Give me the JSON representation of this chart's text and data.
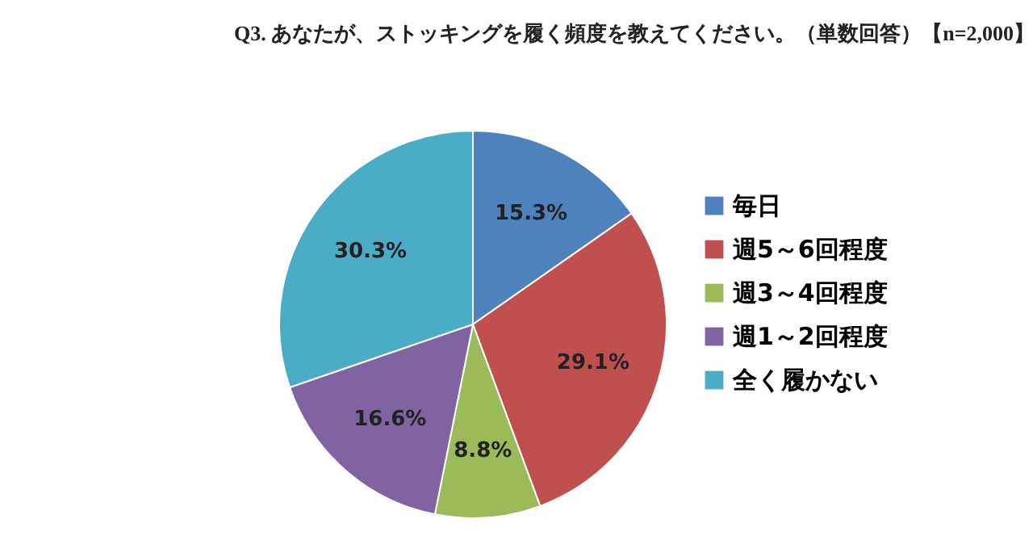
{
  "chart_data": {
    "type": "pie",
    "title": "Q3. あなたが、ストッキングを履く頻度を教えてください。（単数回答）【n=2,000】",
    "categories": [
      "毎日",
      "週5～6回程度",
      "週3～4回程度",
      "週1～2回程度",
      "全く履かない"
    ],
    "values": [
      15.3,
      29.1,
      8.8,
      16.6,
      30.3
    ],
    "value_labels": [
      "15.3%",
      "29.1%",
      "8.8%",
      "16.6%",
      "30.3%"
    ],
    "colors": [
      "#4f81bd",
      "#c0504d",
      "#9bbb59",
      "#8064a2",
      "#4bacc6"
    ],
    "legend": "right"
  }
}
